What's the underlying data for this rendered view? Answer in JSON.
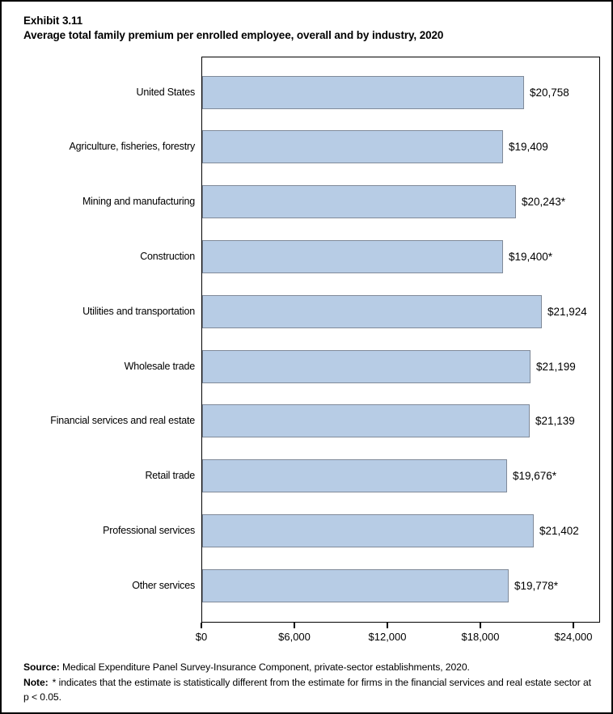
{
  "header": {
    "exhibit": "Exhibit 3.11",
    "title": "Average total family premium per enrolled employee, overall and by industry, 2020"
  },
  "chart_data": {
    "type": "bar",
    "orientation": "horizontal",
    "title": "Average total family premium per enrolled employee, overall and by industry, 2020",
    "categories": [
      "United States",
      "Agriculture, fisheries, forestry",
      "Mining and manufacturing",
      "Construction",
      "Utilities and transportation",
      "Wholesale trade",
      "Financial services and real estate",
      "Retail trade",
      "Professional services",
      "Other services"
    ],
    "values": [
      20758,
      19409,
      20243,
      19400,
      21924,
      21199,
      21139,
      19676,
      21402,
      19778
    ],
    "value_labels": [
      "$20,758",
      "$19,409",
      "$20,243*",
      "$19,400*",
      "$21,924",
      "$21,199",
      "$21,139",
      "$19,676*",
      "$21,402",
      "$19,778*"
    ],
    "xlim": [
      0,
      24000
    ],
    "x_tick_values": [
      0,
      6000,
      12000,
      18000,
      24000
    ],
    "x_tick_labels": [
      "$0",
      "$6,000",
      "$12,000",
      "$18,000",
      "$24,000"
    ],
    "grid": false,
    "legend": false,
    "bar_fill_color": "#B7CCE5",
    "bar_border_color": "#808A99"
  },
  "footer": {
    "source_label": "Source:",
    "source_text": "Medical Expenditure Panel Survey-Insurance Component, private-sector establishments, 2020.",
    "note_label": "Note:",
    "note_text": "* indicates that the estimate is statistically different from the estimate for firms in the financial services and real estate sector at p < 0.05."
  }
}
